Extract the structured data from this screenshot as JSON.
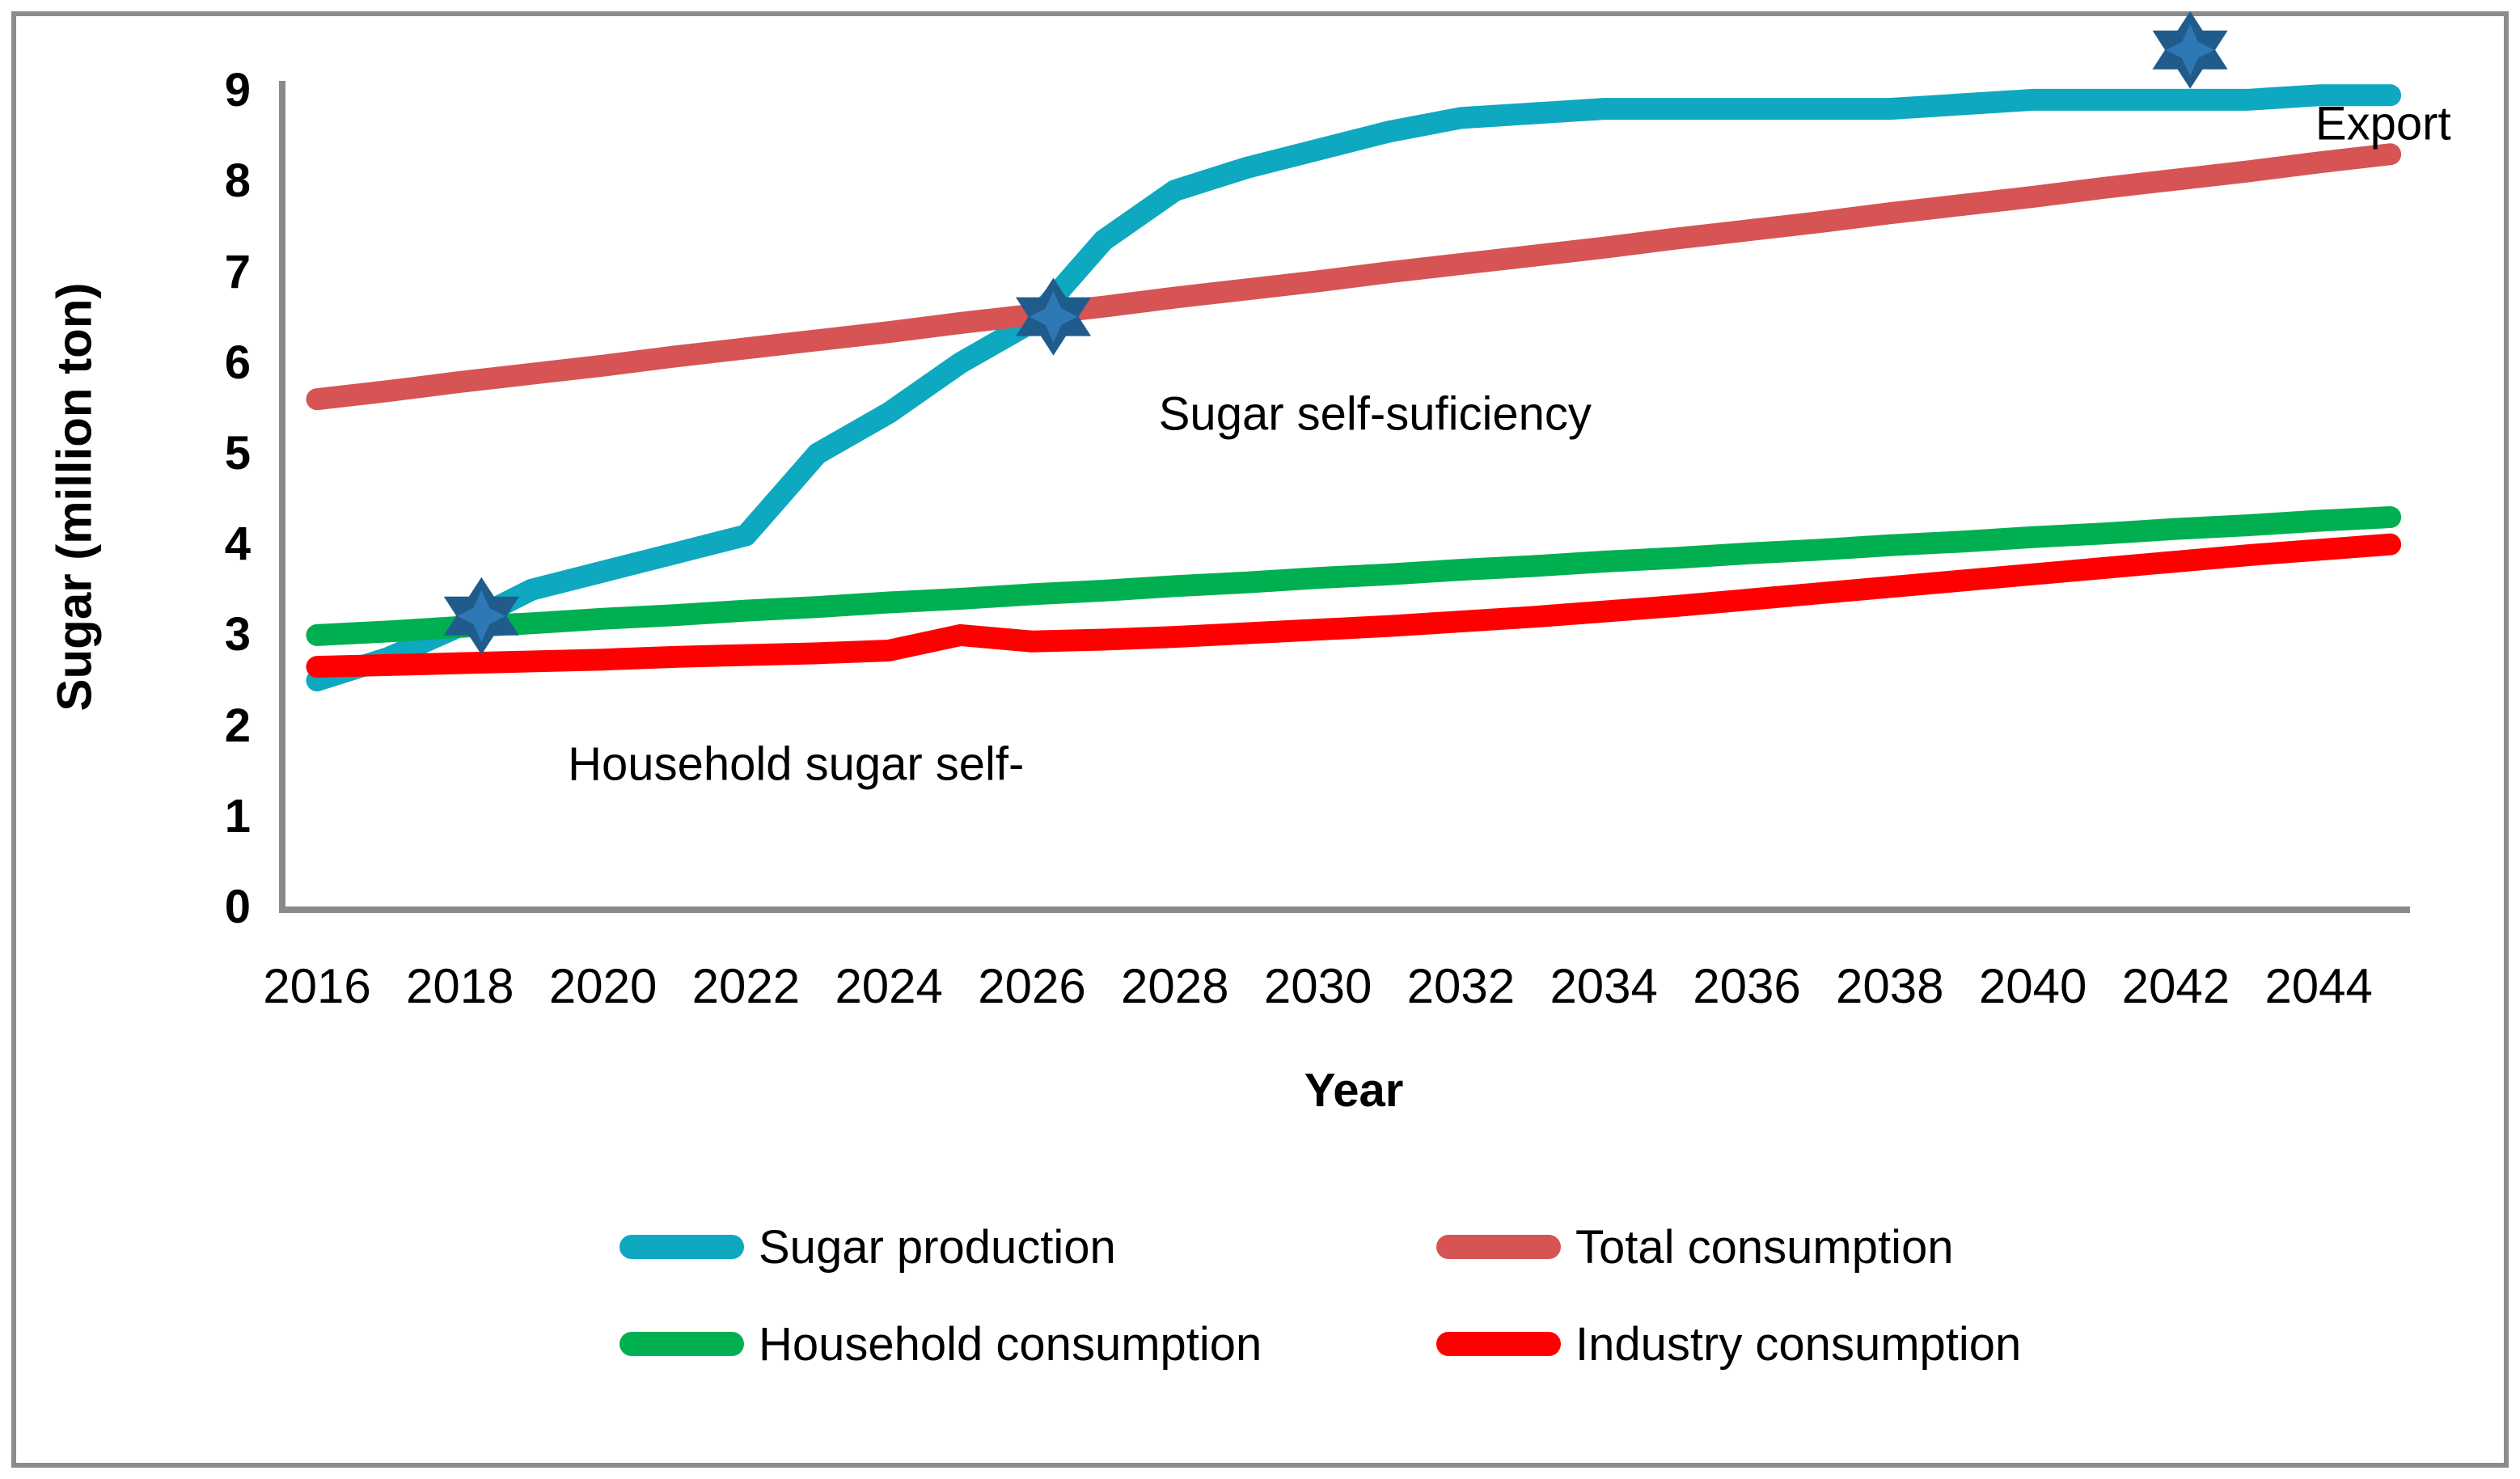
{
  "chart_data": {
    "type": "line",
    "title": "",
    "xlabel": "Year",
    "ylabel": "Sugar (million ton)",
    "x": [
      2016,
      2017,
      2018,
      2019,
      2020,
      2021,
      2022,
      2023,
      2024,
      2025,
      2026,
      2027,
      2028,
      2029,
      2030,
      2031,
      2032,
      2033,
      2034,
      2035,
      2036,
      2037,
      2038,
      2039,
      2040,
      2041,
      2042,
      2043,
      2044,
      2045
    ],
    "series": [
      {
        "name": "Sugar production",
        "color": "#0EA8C0",
        "values": [
          2.5,
          2.75,
          3.1,
          3.5,
          3.7,
          3.9,
          4.1,
          5.0,
          5.45,
          6.0,
          6.45,
          7.35,
          7.9,
          8.15,
          8.35,
          8.55,
          8.7,
          8.75,
          8.8,
          8.8,
          8.8,
          8.8,
          8.8,
          8.85,
          8.9,
          8.9,
          8.9,
          8.9,
          8.95,
          8.95
        ]
      },
      {
        "name": "Total consumption",
        "color": "#D65454",
        "values": [
          5.6,
          5.69,
          5.79,
          5.88,
          5.97,
          6.07,
          6.16,
          6.25,
          6.34,
          6.44,
          6.53,
          6.62,
          6.72,
          6.81,
          6.9,
          7.0,
          7.09,
          7.18,
          7.27,
          7.37,
          7.46,
          7.55,
          7.65,
          7.74,
          7.83,
          7.93,
          8.02,
          8.11,
          8.21,
          8.3
        ]
      },
      {
        "name": "Household consumption",
        "color": "#00AF50",
        "values": [
          3.0,
          3.04,
          3.09,
          3.13,
          3.18,
          3.22,
          3.27,
          3.31,
          3.36,
          3.4,
          3.45,
          3.49,
          3.54,
          3.58,
          3.63,
          3.67,
          3.72,
          3.76,
          3.81,
          3.85,
          3.9,
          3.94,
          3.99,
          4.03,
          4.08,
          4.12,
          4.17,
          4.21,
          4.26,
          4.3
        ]
      },
      {
        "name": "Industry consumption",
        "color": "#FF0000",
        "values": [
          2.65,
          2.67,
          2.69,
          2.71,
          2.73,
          2.76,
          2.78,
          2.8,
          2.83,
          3.0,
          2.93,
          2.95,
          2.98,
          3.02,
          3.06,
          3.1,
          3.15,
          3.2,
          3.26,
          3.32,
          3.39,
          3.46,
          3.53,
          3.6,
          3.67,
          3.74,
          3.81,
          3.88,
          3.94,
          4.0
        ]
      }
    ],
    "xticks": [
      2016,
      2018,
      2020,
      2022,
      2024,
      2026,
      2028,
      2030,
      2032,
      2034,
      2036,
      2038,
      2040,
      2042,
      2044
    ],
    "yticks": [
      0,
      1,
      2,
      3,
      4,
      5,
      6,
      7,
      8,
      9
    ],
    "xlim": [
      2015.5,
      2045.3
    ],
    "ylim": [
      0,
      9
    ],
    "grid": false,
    "legend_position": "bottom",
    "annotations": [
      {
        "text": "Household sugar self-",
        "year": 2022.7,
        "value": 1.58
      },
      {
        "text": "Sugar self-suficiency",
        "year": 2030.8,
        "value": 5.44
      },
      {
        "text": "Export",
        "year": 2044.9,
        "value": 8.64
      }
    ],
    "markers": [
      {
        "shape": "six-pointed-star",
        "year": 2018.3,
        "value": 3.21
      },
      {
        "shape": "six-pointed-star",
        "year": 2026.3,
        "value": 6.51
      },
      {
        "shape": "six-pointed-star",
        "year": 2042.2,
        "value": 9.45
      }
    ],
    "marker_colors": {
      "outer": "#1F5C8C",
      "inner": "#2E78B5"
    },
    "axis_color": "#8A8A8A",
    "border_color": "#8C8C8C"
  },
  "legend": {
    "items": [
      {
        "label": "Sugar production",
        "color": "#0EA8C0"
      },
      {
        "label": "Total consumption",
        "color": "#D65454"
      },
      {
        "label": "Household consumption",
        "color": "#00AF50"
      },
      {
        "label": "Industry consumption",
        "color": "#FF0000"
      }
    ]
  }
}
